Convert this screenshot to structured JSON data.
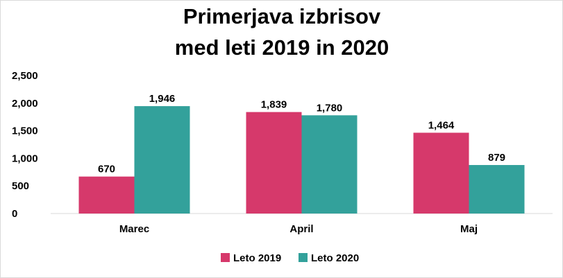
{
  "chart_data": {
    "type": "bar",
    "title_lines": [
      "Primerjava izbrisov",
      "med leti 2019 in 2020"
    ],
    "categories": [
      "Marec",
      "April",
      "Maj"
    ],
    "series": [
      {
        "name": "Leto 2019",
        "values": [
          670,
          1839,
          1464
        ],
        "labels": [
          "670",
          "1,839",
          "1,464"
        ],
        "color": "#d6396b"
      },
      {
        "name": "Leto 2020",
        "values": [
          1946,
          1780,
          879
        ],
        "labels": [
          "1,946",
          "1,780",
          "879"
        ],
        "color": "#33a19b"
      }
    ],
    "yticks": [
      0,
      500,
      1000,
      1500,
      2000,
      2500
    ],
    "ytick_labels": [
      "0",
      "500",
      "1,000",
      "1,500",
      "2,000",
      "2,500"
    ],
    "ylim": [
      0,
      2500
    ],
    "grid": false,
    "legend_position": "bottom"
  }
}
